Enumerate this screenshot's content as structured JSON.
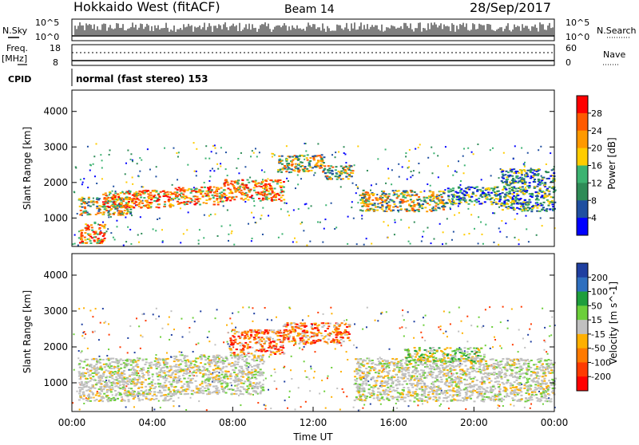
{
  "header": {
    "title": "Hokkaido West (fitACF)",
    "beam": "Beam 14",
    "date": "28/Sep/2017"
  },
  "panels": {
    "nsky_label": "N.Sky",
    "nsearch_label": "N.Search",
    "nsky_ticks": [
      "10^5",
      "10^0"
    ],
    "nsearch_ticks": [
      "10^5",
      "10^0"
    ],
    "freq_label_1": "Freq.",
    "freq_label_2": "[MHz]",
    "freq_ticks": [
      "18",
      "8"
    ],
    "nave_label": "Nave",
    "nave_ticks": [
      "60",
      "0"
    ],
    "cpid_label": "CPID",
    "cpid_text": "normal (fast stereo) 153"
  },
  "chart_data": [
    {
      "type": "heatmap",
      "name": "power",
      "ylabel": "Slant Range [km]",
      "yticks": [
        "4000",
        "3000",
        "2000",
        "1000"
      ],
      "ylim": [
        200,
        4600
      ],
      "colorbar_label": "Power [dB]",
      "colorbar_ticks": [
        "28",
        "24",
        "20",
        "16",
        "12",
        "8",
        "4"
      ],
      "colorbar_colors": [
        "#ff0000",
        "#ff5a00",
        "#ff9900",
        "#ffcc00",
        "#3cb371",
        "#2e8b57",
        "#1f4fa0",
        "#0000ff"
      ],
      "echo_regions": [
        {
          "t": [
            0.3,
            3.0
          ],
          "r": [
            1100,
            1600
          ],
          "level": "medium"
        },
        {
          "t": [
            0.3,
            1.6
          ],
          "r": [
            300,
            900
          ],
          "level": "high"
        },
        {
          "t": [
            1.5,
            5.0
          ],
          "r": [
            1300,
            1800
          ],
          "level": "high"
        },
        {
          "t": [
            5.0,
            7.5
          ],
          "r": [
            1400,
            1900
          ],
          "level": "high"
        },
        {
          "t": [
            7.5,
            10.5
          ],
          "r": [
            1500,
            2100
          ],
          "level": "high"
        },
        {
          "t": [
            10.2,
            12.5
          ],
          "r": [
            2300,
            2800
          ],
          "level": "medium"
        },
        {
          "t": [
            12.5,
            14.0
          ],
          "r": [
            2100,
            2500
          ],
          "level": "medium"
        },
        {
          "t": [
            14.3,
            18.5
          ],
          "r": [
            1200,
            1800
          ],
          "level": "medium"
        },
        {
          "t": [
            18.5,
            21.3
          ],
          "r": [
            1400,
            1900
          ],
          "level": "low"
        },
        {
          "t": [
            21.3,
            24.0
          ],
          "r": [
            1200,
            2400
          ],
          "level": "low"
        }
      ]
    },
    {
      "type": "heatmap",
      "name": "velocity",
      "xlabel": "Time UT",
      "ylabel": "Slant Range [km]",
      "xticks": [
        "00:00",
        "04:00",
        "08:00",
        "12:00",
        "16:00",
        "20:00",
        "00:00"
      ],
      "xlim": [
        0,
        24
      ],
      "yticks": [
        "4000",
        "3000",
        "2000",
        "1000"
      ],
      "ylim": [
        200,
        4600
      ],
      "colorbar_label": "Velocity [m s^-1]",
      "colorbar_ticks": [
        "200",
        "100",
        "50",
        "15",
        "-15",
        "-50",
        "-100",
        "-200"
      ],
      "colorbar_colors": [
        "#1f3fa0",
        "#2e6fbf",
        "#1e9e3c",
        "#6ccf3a",
        "#c0c0c0",
        "#ffb000",
        "#ff7a00",
        "#ff3a00",
        "#ff0000"
      ],
      "echo_regions": [
        {
          "t": [
            0.3,
            5.0
          ],
          "r": [
            500,
            1700
          ],
          "level": "ground"
        },
        {
          "t": [
            5.0,
            9.5
          ],
          "r": [
            700,
            1800
          ],
          "level": "ground"
        },
        {
          "t": [
            7.8,
            10.5
          ],
          "r": [
            1800,
            2500
          ],
          "level": "neg"
        },
        {
          "t": [
            10.5,
            13.8
          ],
          "r": [
            2100,
            2700
          ],
          "level": "neg"
        },
        {
          "t": [
            14.0,
            24.0
          ],
          "r": [
            500,
            1700
          ],
          "level": "ground"
        },
        {
          "t": [
            16.5,
            20.5
          ],
          "r": [
            1600,
            2000
          ],
          "level": "pos"
        }
      ]
    }
  ]
}
